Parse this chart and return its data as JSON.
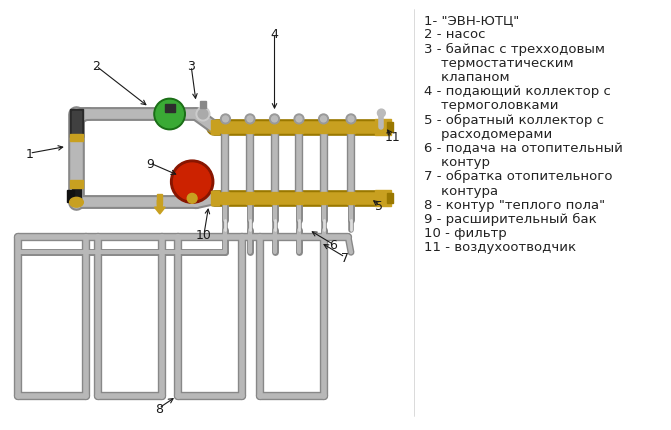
{
  "legend_lines": [
    "1- \"ЭВН-ЮТЦ\"",
    "2 - насос",
    "3 - байпас с трехходовым",
    "    термостатическим",
    "    клапаном",
    "4 - подающий коллектор с",
    "    термоголовками",
    "5 - обратный коллектор с",
    "    расходомерами",
    "6 - подача на отопительный",
    "    контур",
    "7 - обратка отопительного",
    "    контура",
    "8 - контур \"теплого пола\"",
    "9 - расширительный бак",
    "10 - фильтр",
    "11 - воздухоотводчик"
  ],
  "bg_color": "#ffffff",
  "pipe_color": "#b8b8b8",
  "pipe_edge_color": "#888888",
  "brass_color": "#c8a020",
  "brass_dark": "#9a7800",
  "green_color": "#3aaa35",
  "green_dark": "#1a6e16",
  "red_color": "#cc2200",
  "red_dark": "#881500",
  "black_color": "#1a1a1a",
  "gray_dark": "#444444",
  "label_color": "#222222",
  "font_size": 9.5
}
